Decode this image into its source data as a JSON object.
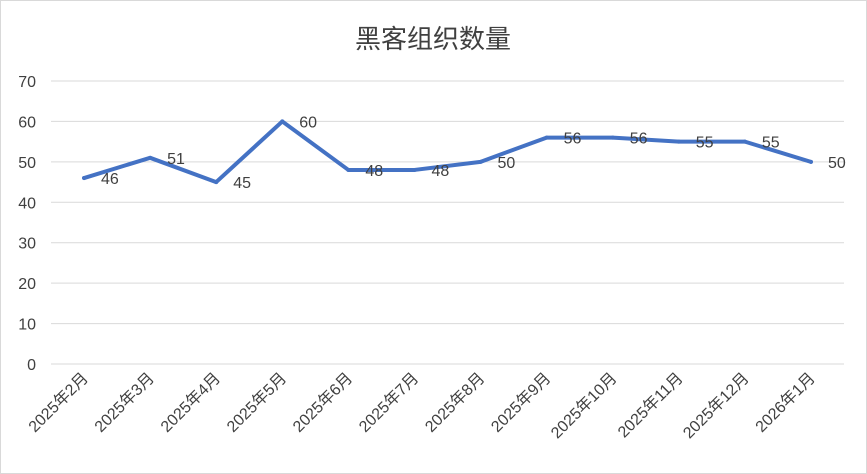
{
  "chart_data": {
    "type": "line",
    "title": "黑客组织数量",
    "xlabel": "",
    "ylabel": "",
    "categories": [
      "2025年2月",
      "2025年3月",
      "2025年4月",
      "2025年5月",
      "2025年6月",
      "2025年7月",
      "2025年8月",
      "2025年9月",
      "2025年10月",
      "2025年11月",
      "2025年12月",
      "2026年1月"
    ],
    "series": [
      {
        "values": [
          46,
          51,
          45,
          60,
          48,
          48,
          50,
          56,
          56,
          55,
          55,
          50
        ]
      }
    ],
    "ylim": [
      0,
      70
    ],
    "yticks": [
      0,
      10,
      20,
      30,
      40,
      50,
      60,
      70
    ],
    "grid": true,
    "legend": "none",
    "data_labels": true,
    "line_color": "#4472c4",
    "grid_color": "#d9d9d9",
    "text_color": "#404040"
  }
}
